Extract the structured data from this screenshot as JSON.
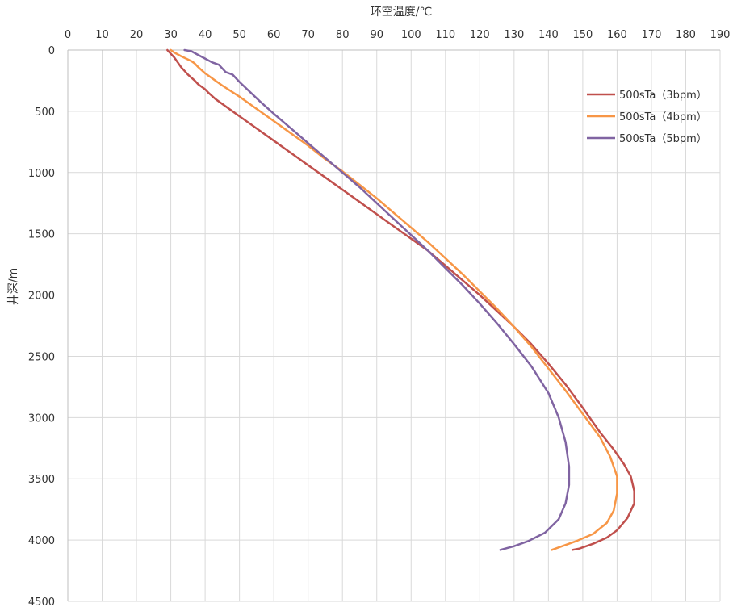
{
  "chart_data": {
    "type": "line",
    "title": "",
    "xlabel": "环空温度/℃",
    "ylabel": "井深/m",
    "x_axis_position": "top",
    "y_axis_inverted": true,
    "xlim": [
      0,
      190
    ],
    "ylim": [
      0,
      4500
    ],
    "x_ticks": [
      "0",
      "10",
      "20",
      "30",
      "40",
      "50",
      "60",
      "70",
      "80",
      "90",
      "100",
      "110",
      "120",
      "130",
      "140",
      "150",
      "160",
      "170",
      "180",
      "190"
    ],
    "y_ticks": [
      "0",
      "500",
      "1000",
      "1500",
      "2000",
      "2500",
      "3000",
      "3500",
      "4000",
      "4500"
    ],
    "grid": true,
    "legend_position": "top-right",
    "series": [
      {
        "name": "500sTa（3bpm）",
        "color": "#c0504d",
        "points": [
          [
            29,
            0
          ],
          [
            30,
            30
          ],
          [
            31,
            60
          ],
          [
            32,
            100
          ],
          [
            33,
            140
          ],
          [
            34,
            170
          ],
          [
            35,
            200
          ],
          [
            37,
            250
          ],
          [
            38,
            280
          ],
          [
            40,
            320
          ],
          [
            41,
            350
          ],
          [
            43,
            400
          ],
          [
            46,
            460
          ],
          [
            50,
            540
          ],
          [
            55,
            640
          ],
          [
            60,
            740
          ],
          [
            65,
            840
          ],
          [
            70,
            940
          ],
          [
            75,
            1040
          ],
          [
            80,
            1140
          ],
          [
            85,
            1240
          ],
          [
            90,
            1340
          ],
          [
            95,
            1440
          ],
          [
            100,
            1540
          ],
          [
            105,
            1640
          ],
          [
            110,
            1760
          ],
          [
            115,
            1880
          ],
          [
            120,
            2000
          ],
          [
            125,
            2130
          ],
          [
            130,
            2260
          ],
          [
            135,
            2400
          ],
          [
            140,
            2560
          ],
          [
            145,
            2730
          ],
          [
            150,
            2920
          ],
          [
            155,
            3120
          ],
          [
            159,
            3260
          ],
          [
            162,
            3380
          ],
          [
            164,
            3480
          ],
          [
            165,
            3600
          ],
          [
            165,
            3700
          ],
          [
            163,
            3820
          ],
          [
            160,
            3920
          ],
          [
            157,
            3980
          ],
          [
            153,
            4030
          ],
          [
            149,
            4070
          ],
          [
            147,
            4080
          ]
        ]
      },
      {
        "name": "500sTa（4bpm）",
        "color": "#f79646",
        "points": [
          [
            30,
            0
          ],
          [
            31,
            20
          ],
          [
            33,
            50
          ],
          [
            36,
            90
          ],
          [
            37,
            110
          ],
          [
            38,
            140
          ],
          [
            40,
            190
          ],
          [
            42,
            230
          ],
          [
            45,
            290
          ],
          [
            50,
            380
          ],
          [
            55,
            480
          ],
          [
            60,
            580
          ],
          [
            65,
            680
          ],
          [
            70,
            780
          ],
          [
            75,
            890
          ],
          [
            80,
            990
          ],
          [
            85,
            1100
          ],
          [
            90,
            1210
          ],
          [
            95,
            1330
          ],
          [
            100,
            1450
          ],
          [
            105,
            1570
          ],
          [
            110,
            1700
          ],
          [
            115,
            1830
          ],
          [
            120,
            1970
          ],
          [
            125,
            2110
          ],
          [
            130,
            2260
          ],
          [
            135,
            2420
          ],
          [
            140,
            2600
          ],
          [
            145,
            2780
          ],
          [
            150,
            2970
          ],
          [
            155,
            3160
          ],
          [
            158,
            3320
          ],
          [
            160,
            3480
          ],
          [
            160,
            3620
          ],
          [
            159,
            3760
          ],
          [
            157,
            3860
          ],
          [
            153,
            3950
          ],
          [
            148,
            4010
          ],
          [
            144,
            4050
          ],
          [
            141,
            4080
          ]
        ]
      },
      {
        "name": "500sTa（5bpm）",
        "color": "#8064a2",
        "points": [
          [
            34,
            0
          ],
          [
            36,
            10
          ],
          [
            38,
            40
          ],
          [
            40,
            70
          ],
          [
            42,
            100
          ],
          [
            44,
            120
          ],
          [
            45,
            150
          ],
          [
            46,
            180
          ],
          [
            48,
            200
          ],
          [
            50,
            260
          ],
          [
            53,
            340
          ],
          [
            56,
            420
          ],
          [
            60,
            520
          ],
          [
            65,
            640
          ],
          [
            70,
            760
          ],
          [
            75,
            880
          ],
          [
            80,
            1000
          ],
          [
            85,
            1120
          ],
          [
            90,
            1250
          ],
          [
            95,
            1380
          ],
          [
            100,
            1510
          ],
          [
            105,
            1640
          ],
          [
            110,
            1780
          ],
          [
            115,
            1920
          ],
          [
            120,
            2070
          ],
          [
            125,
            2230
          ],
          [
            130,
            2400
          ],
          [
            135,
            2580
          ],
          [
            140,
            2800
          ],
          [
            143,
            3000
          ],
          [
            145,
            3200
          ],
          [
            146,
            3400
          ],
          [
            146,
            3550
          ],
          [
            145,
            3700
          ],
          [
            143,
            3830
          ],
          [
            139,
            3940
          ],
          [
            134,
            4010
          ],
          [
            130,
            4050
          ],
          [
            126,
            4080
          ]
        ]
      }
    ]
  }
}
